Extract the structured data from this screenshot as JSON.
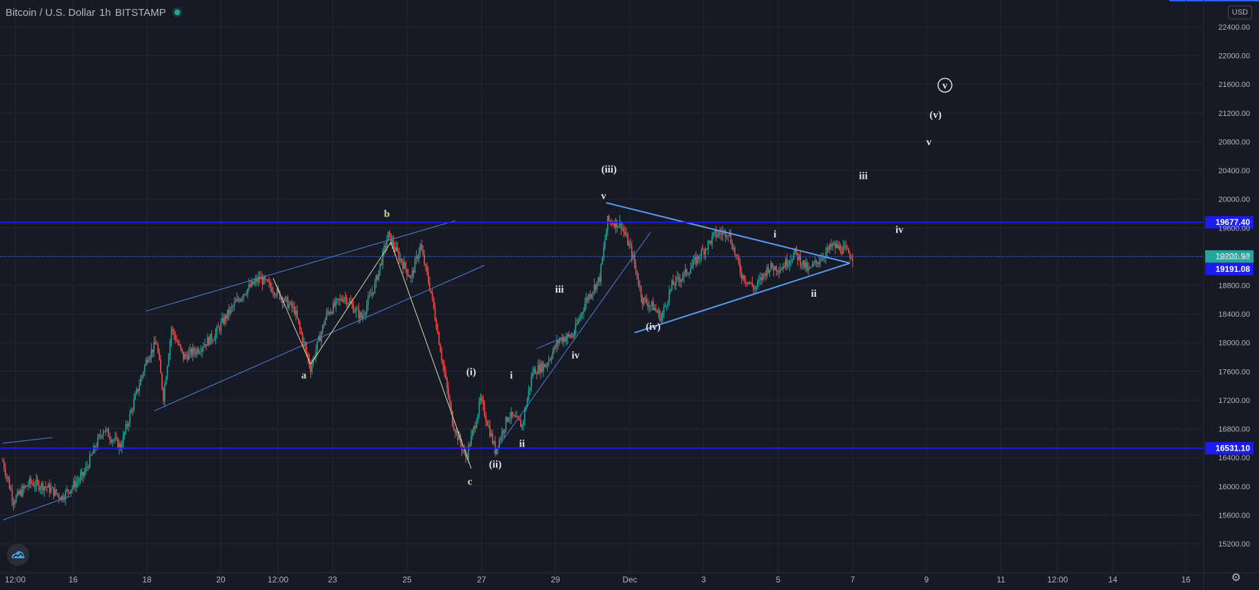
{
  "header": {
    "symbol": "Bitcoin / U.S. Dollar",
    "interval": "1h",
    "exchange": "BITSTAMP"
  },
  "currency": "USD",
  "chart_data": {
    "type": "candlestick",
    "title": "Bitcoin / U.S. Dollar",
    "ylim": [
      14880,
      22750
    ],
    "y_ticks": [
      15200,
      15600,
      16000,
      16400,
      16800,
      17200,
      17600,
      18000,
      18400,
      18800,
      19200,
      19600,
      20000,
      20400,
      20800,
      21200,
      21600,
      22000,
      22400
    ],
    "x_ticks": [
      "12:00",
      "16",
      "18",
      "20",
      "12:00",
      "23",
      "25",
      "27",
      "29",
      "Dec",
      "3",
      "5",
      "7",
      "9",
      "11",
      "12:00",
      "14",
      "16"
    ],
    "horizontal_levels": [
      19677.4,
      16531.1
    ],
    "current_price": 19201.93,
    "countdown": "52:31",
    "reference_level": 19191.08,
    "price_anchors": [
      {
        "t": 0,
        "p": 16350
      },
      {
        "t": 8,
        "p": 15800
      },
      {
        "t": 20,
        "p": 16050
      },
      {
        "t": 32,
        "p": 16000
      },
      {
        "t": 44,
        "p": 15850
      },
      {
        "t": 60,
        "p": 16150
      },
      {
        "t": 75,
        "p": 16800
      },
      {
        "t": 88,
        "p": 16550
      },
      {
        "t": 100,
        "p": 17300
      },
      {
        "t": 108,
        "p": 17800
      },
      {
        "t": 115,
        "p": 18000
      },
      {
        "t": 120,
        "p": 17250
      },
      {
        "t": 126,
        "p": 18200
      },
      {
        "t": 135,
        "p": 17800
      },
      {
        "t": 145,
        "p": 17900
      },
      {
        "t": 158,
        "p": 18100
      },
      {
        "t": 168,
        "p": 18400
      },
      {
        "t": 180,
        "p": 18700
      },
      {
        "t": 192,
        "p": 18900
      },
      {
        "t": 205,
        "p": 18700
      },
      {
        "t": 218,
        "p": 18450
      },
      {
        "t": 230,
        "p": 17650
      },
      {
        "t": 242,
        "p": 18400
      },
      {
        "t": 255,
        "p": 18650
      },
      {
        "t": 268,
        "p": 18350
      },
      {
        "t": 278,
        "p": 18800
      },
      {
        "t": 288,
        "p": 19500
      },
      {
        "t": 296,
        "p": 19200
      },
      {
        "t": 305,
        "p": 18900
      },
      {
        "t": 312,
        "p": 19350
      },
      {
        "t": 320,
        "p": 18700
      },
      {
        "t": 328,
        "p": 17800
      },
      {
        "t": 336,
        "p": 16900
      },
      {
        "t": 346,
        "p": 16400
      },
      {
        "t": 352,
        "p": 16800
      },
      {
        "t": 357,
        "p": 17200
      },
      {
        "t": 362,
        "p": 16900
      },
      {
        "t": 368,
        "p": 16500
      },
      {
        "t": 378,
        "p": 17000
      },
      {
        "t": 388,
        "p": 16850
      },
      {
        "t": 396,
        "p": 17600
      },
      {
        "t": 406,
        "p": 17700
      },
      {
        "t": 416,
        "p": 18050
      },
      {
        "t": 426,
        "p": 18100
      },
      {
        "t": 436,
        "p": 18600
      },
      {
        "t": 446,
        "p": 18900
      },
      {
        "t": 452,
        "p": 19700
      },
      {
        "t": 462,
        "p": 19650
      },
      {
        "t": 470,
        "p": 19250
      },
      {
        "t": 478,
        "p": 18600
      },
      {
        "t": 486,
        "p": 18500
      },
      {
        "t": 492,
        "p": 18350
      },
      {
        "t": 500,
        "p": 18800
      },
      {
        "t": 512,
        "p": 19000
      },
      {
        "t": 522,
        "p": 19250
      },
      {
        "t": 532,
        "p": 19500
      },
      {
        "t": 542,
        "p": 19550
      },
      {
        "t": 552,
        "p": 18950
      },
      {
        "t": 562,
        "p": 18750
      },
      {
        "t": 572,
        "p": 19050
      },
      {
        "t": 582,
        "p": 19050
      },
      {
        "t": 592,
        "p": 19250
      },
      {
        "t": 602,
        "p": 19000
      },
      {
        "t": 612,
        "p": 19200
      },
      {
        "t": 620,
        "p": 19350
      },
      {
        "t": 628,
        "p": 19300
      },
      {
        "t": 635,
        "p": 19200
      }
    ],
    "wave_labels": [
      {
        "text": "a",
        "t": 225,
        "p": 17500,
        "color": "#c5e1a5"
      },
      {
        "text": "b",
        "t": 287,
        "p": 19750,
        "color": "#c5e1a5"
      },
      {
        "text": "c",
        "t": 349,
        "p": 16020,
        "color": "#c5e1a5"
      },
      {
        "text": "(i)",
        "t": 350,
        "p": 17550,
        "color": "#e0e3eb"
      },
      {
        "text": "(ii)",
        "t": 368,
        "p": 16260,
        "color": "#e0e3eb"
      },
      {
        "text": "i",
        "t": 380,
        "p": 17500,
        "color": "#e0e3eb"
      },
      {
        "text": "ii",
        "t": 388,
        "p": 16550,
        "color": "#e0e3eb"
      },
      {
        "text": "iii",
        "t": 416,
        "p": 18700,
        "color": "#e0e3eb"
      },
      {
        "text": "iv",
        "t": 428,
        "p": 17780,
        "color": "#e0e3eb"
      },
      {
        "text": "v",
        "t": 449,
        "p": 20000,
        "color": "#e0e3eb"
      },
      {
        "text": "(iii)",
        "t": 453,
        "p": 20370,
        "color": "#e0e3eb"
      },
      {
        "text": "(iv)",
        "t": 486,
        "p": 18180,
        "color": "#e0e3eb"
      },
      {
        "text": "i",
        "t": 577,
        "p": 19470,
        "color": "#e0e3eb"
      },
      {
        "text": "ii",
        "t": 606,
        "p": 18640,
        "color": "#e0e3eb"
      },
      {
        "text": "iii",
        "t": 643,
        "p": 20280,
        "color": "#e0e3eb"
      },
      {
        "text": "iv",
        "t": 670,
        "p": 19530,
        "color": "#e0e3eb"
      },
      {
        "text": "v",
        "t": 692,
        "p": 20750,
        "color": "#e0e3eb"
      },
      {
        "text": "(v)",
        "t": 697,
        "p": 21130,
        "color": "#e0e3eb"
      },
      {
        "text": "v",
        "t": 704,
        "p": 21540,
        "color": "#e0e3eb",
        "circled": true
      }
    ],
    "trendlines": [
      {
        "from": {
          "t": 0,
          "p": 16600
        },
        "to": {
          "t": 37,
          "p": 16680
        },
        "color": "#5b7fd9",
        "width": 1
      },
      {
        "from": {
          "t": 0,
          "p": 15530
        },
        "to": {
          "t": 50,
          "p": 15860
        },
        "color": "#5b7fd9",
        "width": 1
      },
      {
        "from": {
          "t": 113,
          "p": 17050
        },
        "to": {
          "t": 360,
          "p": 19080
        },
        "color": "#5b7fd9",
        "width": 1
      },
      {
        "from": {
          "t": 107,
          "p": 18440
        },
        "to": {
          "t": 338,
          "p": 19700
        },
        "color": "#5b7fd9",
        "width": 1
      },
      {
        "from": {
          "t": 202,
          "p": 18900
        },
        "to": {
          "t": 230,
          "p": 17700
        },
        "color": "#d7e0a7",
        "width": 1
      },
      {
        "from": {
          "t": 230,
          "p": 17700
        },
        "to": {
          "t": 290,
          "p": 19400
        },
        "color": "#d7e0a7",
        "width": 1
      },
      {
        "from": {
          "t": 290,
          "p": 19400
        },
        "to": {
          "t": 350,
          "p": 16250
        },
        "color": "#d7e0a7",
        "width": 1
      },
      {
        "from": {
          "t": 367,
          "p": 16470
        },
        "to": {
          "t": 484,
          "p": 19540
        },
        "color": "#5b7fd9",
        "width": 1
      },
      {
        "from": {
          "t": 399,
          "p": 17920
        },
        "to": {
          "t": 429,
          "p": 18150
        },
        "color": "#5b7fd9",
        "width": 1
      },
      {
        "from": {
          "t": 451,
          "p": 19950
        },
        "to": {
          "t": 633,
          "p": 19110
        },
        "color": "#5b9cf2",
        "width": 2
      },
      {
        "from": {
          "t": 472,
          "p": 18140
        },
        "to": {
          "t": 633,
          "p": 19110
        },
        "color": "#5b9cf2",
        "width": 2
      }
    ]
  }
}
